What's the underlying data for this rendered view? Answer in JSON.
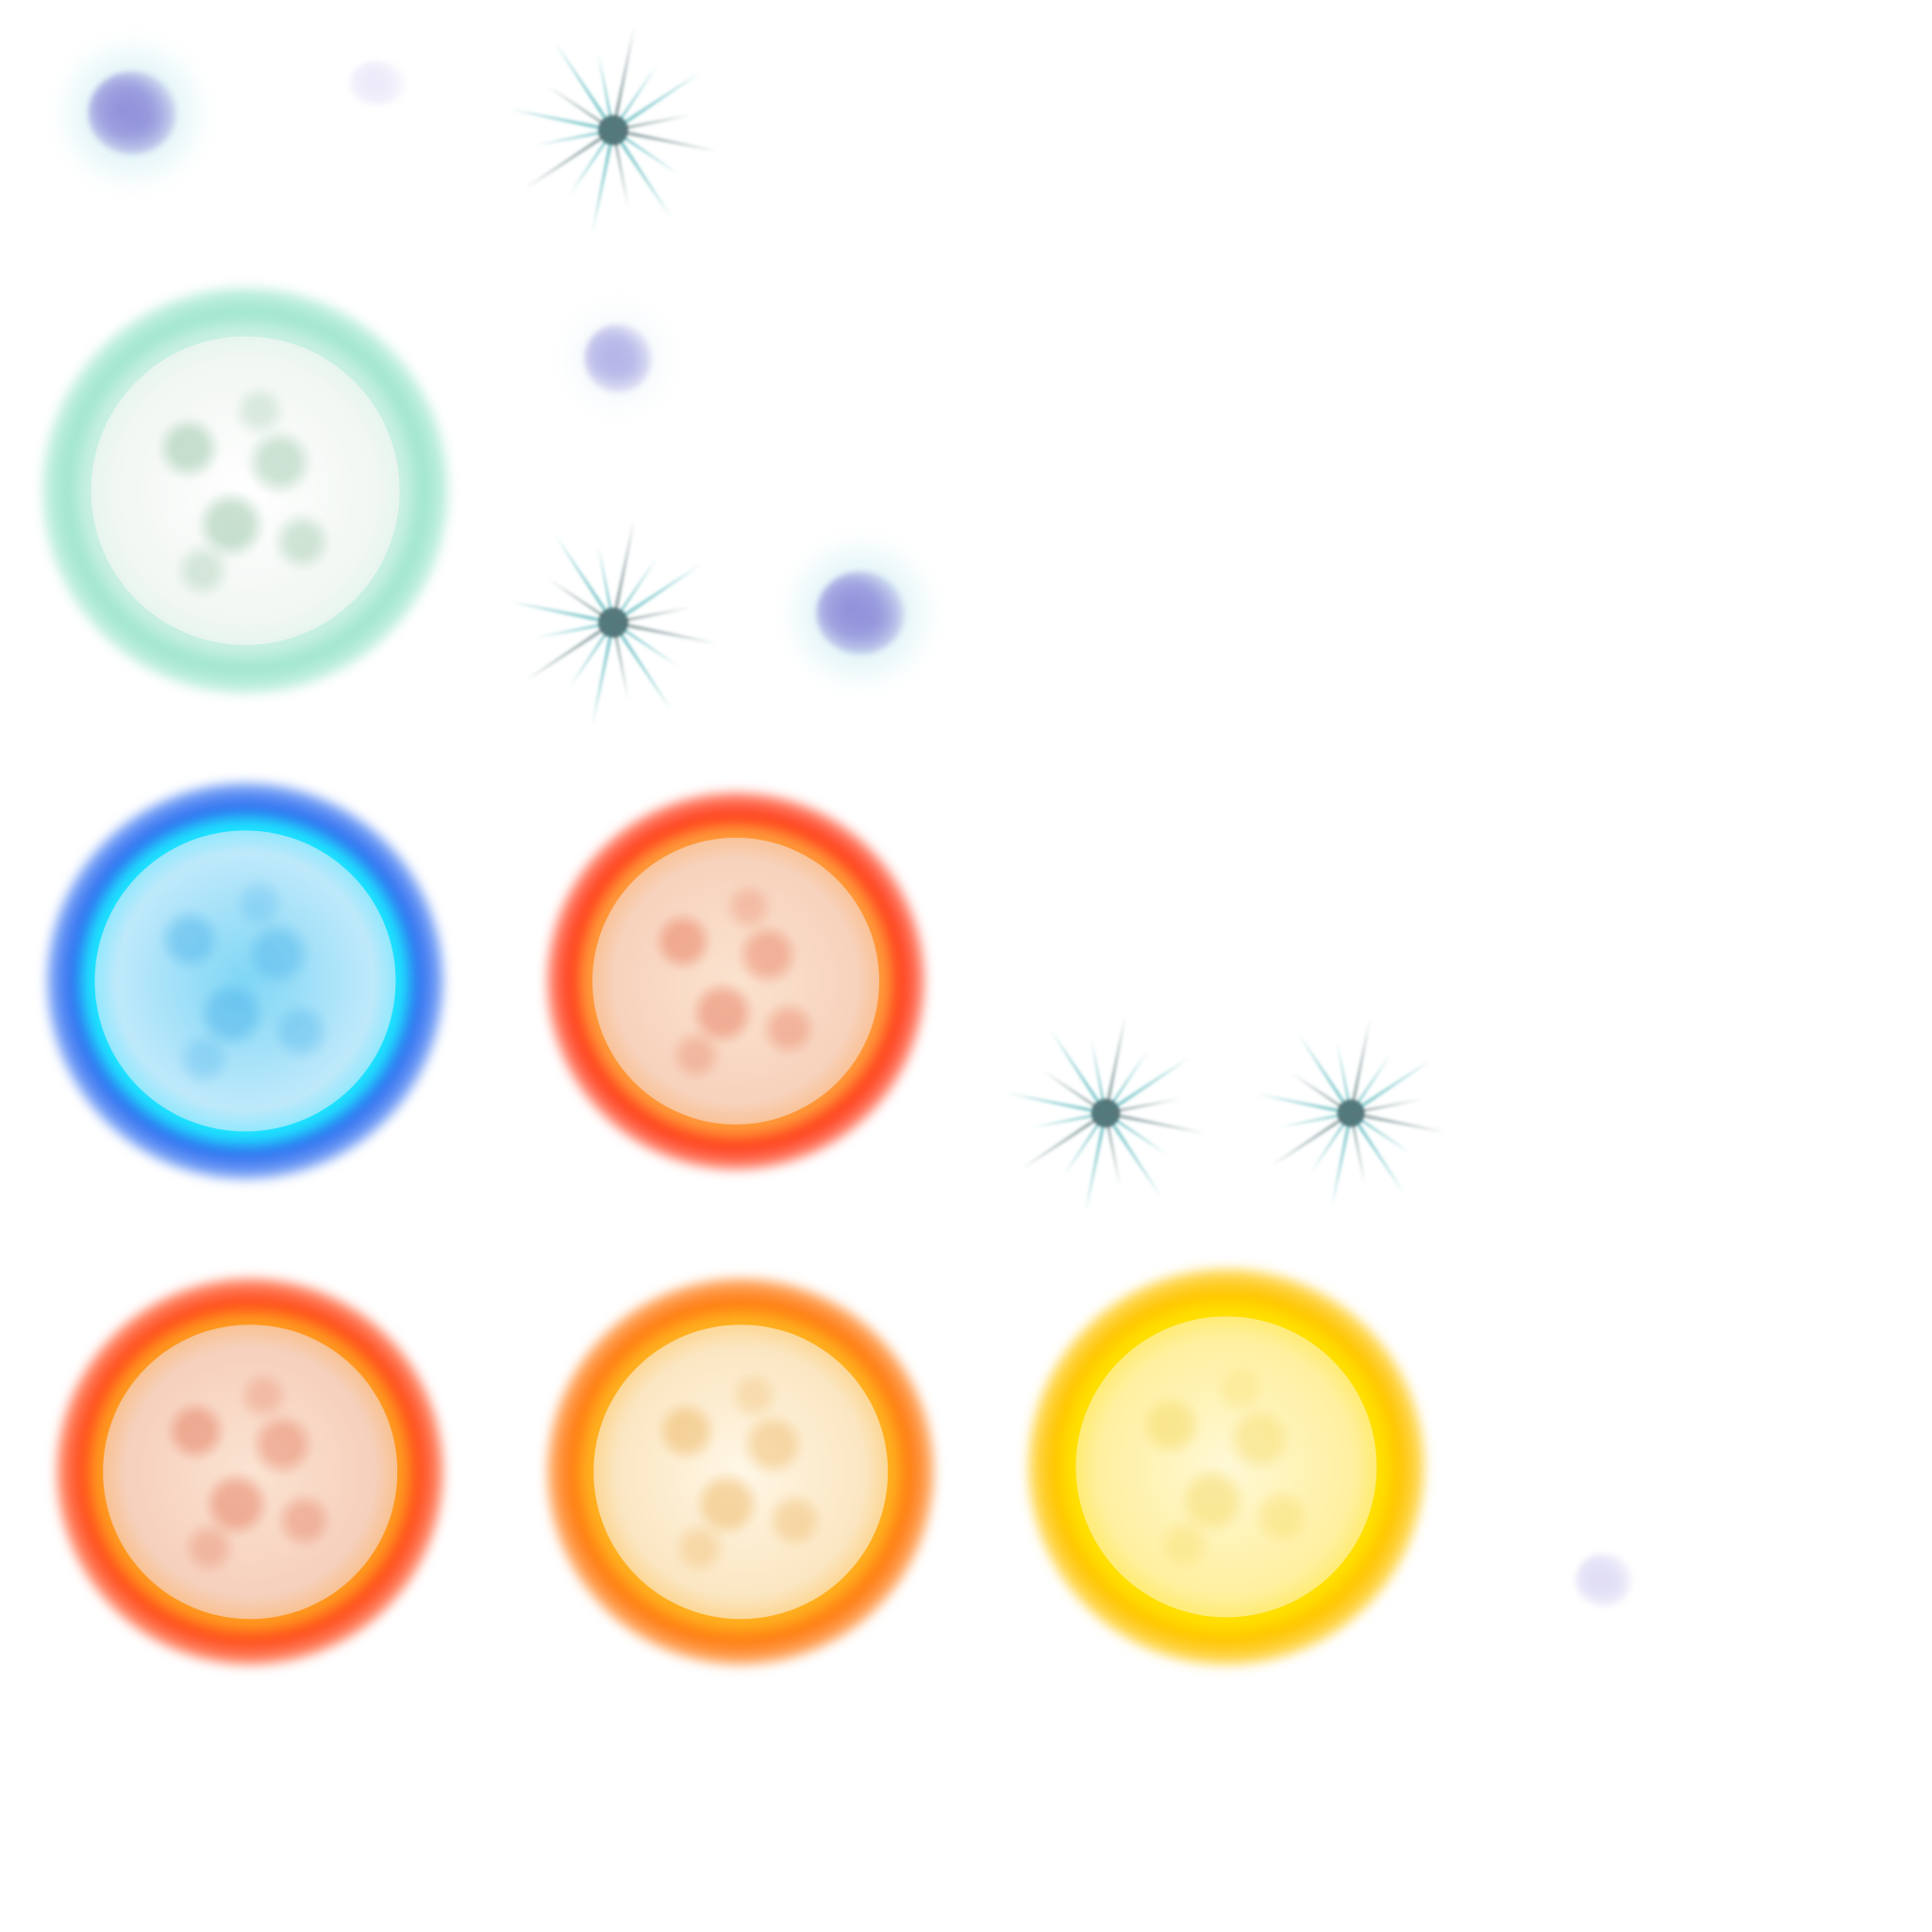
{
  "sheet": {
    "background": "#ffffff"
  },
  "sprites": [
    {
      "kind": "nebula",
      "name": "nebula-small-violet-1",
      "color": "#8a86d8",
      "glow": "#bfe9ef",
      "intensity": 0.9
    },
    {
      "kind": "nebula",
      "name": "nebula-faint-violet-1",
      "color": "#c9c4ef",
      "glow": "#ffffff",
      "intensity": 0.35
    },
    {
      "kind": "spark",
      "name": "teal-starburst-1",
      "color": "#4fb3b8",
      "shade": "#3a5f63"
    },
    {
      "kind": "sun",
      "name": "white-dwarf-sun",
      "core": "#ffffff",
      "disc": "#f2f7f3",
      "rim": "#c9f0e3",
      "glow": "#9fe6cf",
      "texture": "#6fae84"
    },
    {
      "kind": "nebula",
      "name": "nebula-small-violet-2",
      "color": "#9a96e0",
      "glow": "#e6f3f7",
      "intensity": 0.7
    },
    {
      "kind": "spark",
      "name": "teal-starburst-2",
      "color": "#4fb3b8",
      "shade": "#3a5f63"
    },
    {
      "kind": "nebula",
      "name": "nebula-small-violet-3",
      "color": "#8a86d8",
      "glow": "#bfe9ef",
      "intensity": 0.9
    },
    {
      "kind": "sun",
      "name": "blue-giant-sun",
      "core": "#7fd6f5",
      "disc": "#bfe9fb",
      "rim": "#1ee3ff",
      "glow": "#2f6ff0",
      "texture": "#3aa6e6"
    },
    {
      "kind": "sun",
      "name": "red-giant-sun-1",
      "core": "#fbe3cf",
      "disc": "#f7d2bc",
      "rim": "#ff9a3a",
      "glow": "#ff3d1a",
      "texture": "#e25a3c"
    },
    {
      "kind": "spark",
      "name": "teal-starburst-3",
      "color": "#4fb3b8",
      "shade": "#3a5f63"
    },
    {
      "kind": "spark",
      "name": "teal-starburst-4",
      "color": "#4fb3b8",
      "shade": "#3a5f63"
    },
    {
      "kind": "sun",
      "name": "red-giant-sun-2",
      "core": "#fbe3d2",
      "disc": "#f6d0bc",
      "rim": "#ff9a20",
      "glow": "#ff4a1a",
      "texture": "#dd5a3a"
    },
    {
      "kind": "sun",
      "name": "orange-sun",
      "core": "#fff7e6",
      "disc": "#fbe6c2",
      "rim": "#ffb020",
      "glow": "#ff7a10",
      "texture": "#e8a23a"
    },
    {
      "kind": "sun",
      "name": "yellow-sun",
      "core": "#fff8d6",
      "disc": "#fff0a0",
      "rim": "#ffe000",
      "glow": "#ffc400",
      "texture": "#f0d24a"
    },
    {
      "kind": "nebula",
      "name": "nebula-faint-violet-2",
      "color": "#b9b4ea",
      "glow": "#ffffff",
      "intensity": 0.45
    }
  ]
}
